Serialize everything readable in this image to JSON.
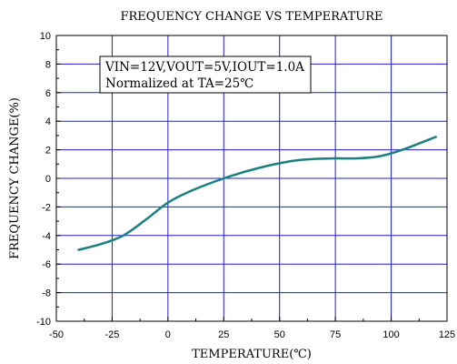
{
  "chart_data": {
    "type": "line",
    "title": "FREQUENCY CHANGE VS TEMPERATURE",
    "xlabel": "TEMPERATURE(℃)",
    "ylabel": "FREQUENCY CHANGE(%)",
    "xlim": [
      -50,
      125
    ],
    "ylim": [
      -10,
      10
    ],
    "xticks": [
      -50,
      -25,
      0,
      25,
      50,
      75,
      100,
      125
    ],
    "yticks": [
      -10,
      -8,
      -6,
      -4,
      -2,
      0,
      2,
      4,
      6,
      8,
      10
    ],
    "grid": true,
    "annotation": [
      "VIN=12V,VOUT=5V,IOUT=1.0A",
      "Normalized at TA=25℃"
    ],
    "colors": {
      "line": "#1a7f7f",
      "grid": "#1f1fd1",
      "axis": "#000000"
    },
    "series": [
      {
        "x": [
          -40,
          -30,
          -20,
          -10,
          0,
          10,
          25,
          40,
          55,
          65,
          75,
          85,
          95,
          105,
          120
        ],
        "y": [
          -5.0,
          -4.6,
          -4.0,
          -2.9,
          -1.7,
          -0.9,
          0.0,
          0.7,
          1.2,
          1.35,
          1.4,
          1.4,
          1.55,
          2.0,
          2.9
        ]
      }
    ]
  }
}
